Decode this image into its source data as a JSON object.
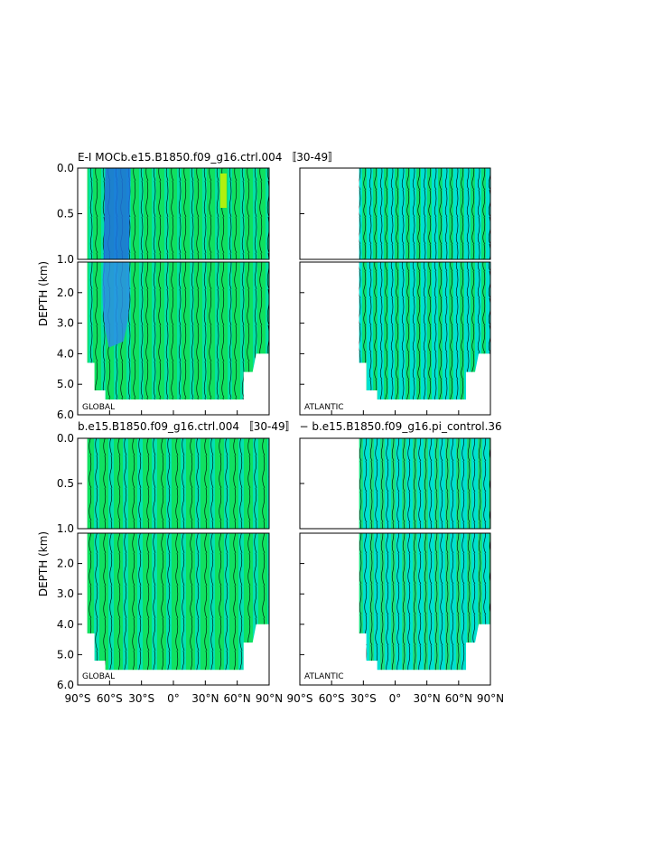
{
  "chart_data": [
    {
      "type": "contour",
      "title": "E-I MOCb.e15.B1850.f09_g16.ctrl.004 〚30-49〛",
      "ylabel": "DEPTH (km)",
      "xticks": [
        "90°S",
        "60°S",
        "30°S",
        "0°",
        "30°N",
        "60°N",
        "90°N"
      ],
      "yticks_upper": [
        "0.0",
        "0.5",
        "1.0"
      ],
      "yticks_lower": [
        "2.0",
        "3.0",
        "4.0",
        "5.0",
        "6.0"
      ],
      "ylim_upper": [
        0,
        1
      ],
      "ylim_lower": [
        1,
        6
      ],
      "panels": [
        {
          "label": "GLOBAL",
          "lat_extent": [
            -81,
            90
          ],
          "max_depth_km": 5.5
        },
        {
          "label": "ATLANTIC",
          "lat_extent": [
            -34,
            90
          ],
          "max_depth_km": 5.5
        }
      ],
      "colors": {
        "deep_blue": "#1e70e0",
        "mid_blue": "#2aa8e8",
        "cyan": "#00e0d0",
        "green": "#10e060",
        "light_green": "#60f040",
        "yellow_green": "#b0f010"
      }
    },
    {
      "type": "contour",
      "title": "b.e15.B1850.f09_g16.ctrl.004 〚30-49〛 − b.e15.B1850.f09_g16.pi_control.36",
      "ylabel": "DEPTH (km)",
      "xticks": [
        "90°S",
        "60°S",
        "30°S",
        "0°",
        "30°N",
        "60°N",
        "90°N"
      ],
      "yticks_upper": [
        "0.0",
        "0.5",
        "1.0"
      ],
      "yticks_lower": [
        "2.0",
        "3.0",
        "4.0",
        "5.0",
        "6.0"
      ],
      "ylim_upper": [
        0,
        1
      ],
      "ylim_lower": [
        1,
        6
      ],
      "panels": [
        {
          "label": "GLOBAL",
          "lat_extent": [
            -81,
            90
          ],
          "max_depth_km": 5.5
        },
        {
          "label": "ATLANTIC",
          "lat_extent": [
            -34,
            90
          ],
          "max_depth_km": 5.5
        }
      ],
      "colors": {
        "cyan": "#00e0d0",
        "green": "#10e060",
        "light_green": "#50f050"
      }
    }
  ]
}
